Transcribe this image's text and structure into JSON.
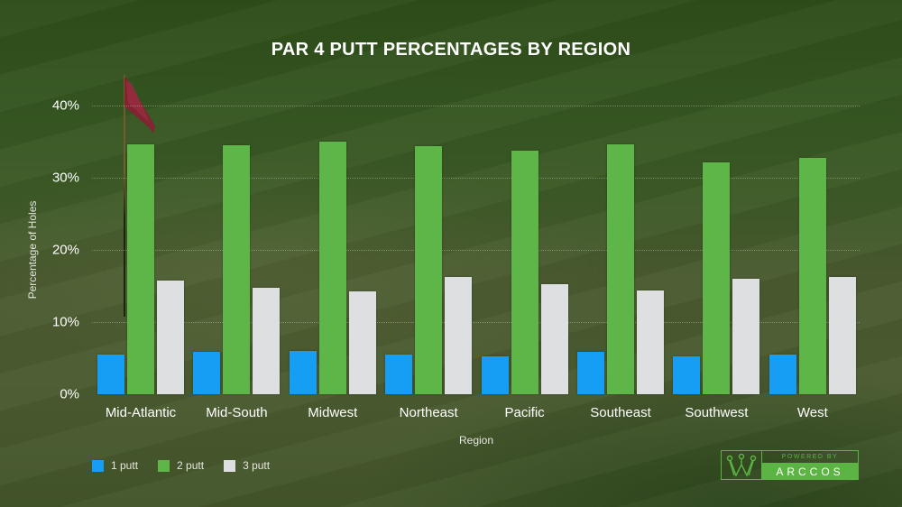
{
  "title": "PAR 4 PUTT PERCENTAGES BY REGION",
  "y_axis": {
    "label": "Percentage of Holes",
    "ticks": [
      "0%",
      "10%",
      "20%",
      "30%",
      "40%"
    ]
  },
  "x_axis": {
    "label": "Region",
    "categories": [
      "Mid-Atlantic",
      "Mid-South",
      "Midwest",
      "Northeast",
      "Pacific",
      "Southeast",
      "Southwest",
      "West"
    ]
  },
  "legend": [
    {
      "label": "1 putt",
      "color": "#169ef5"
    },
    {
      "label": "2 putt",
      "color": "#5eb648"
    },
    {
      "label": "3 putt",
      "color": "#dedfe1"
    }
  ],
  "logo": {
    "powered_by": "POWERED BY",
    "brand": "ARCCOS",
    "icon": "crown-icon",
    "color": "#5cb445"
  },
  "chart_data": {
    "type": "bar",
    "title": "PAR 4 PUTT PERCENTAGES BY REGION",
    "xlabel": "Region",
    "ylabel": "Percentage of Holes",
    "ylim": [
      0,
      40
    ],
    "yticks": [
      0,
      10,
      20,
      30,
      40
    ],
    "ytick_format": "percent",
    "grid": true,
    "legend_position": "bottom-left",
    "categories": [
      "Mid-Atlantic",
      "Mid-South",
      "Midwest",
      "Northeast",
      "Pacific",
      "Southeast",
      "Southwest",
      "West"
    ],
    "series": [
      {
        "name": "1 putt",
        "color": "#169ef5",
        "values": [
          5.5,
          5.9,
          6.0,
          5.5,
          5.3,
          5.9,
          5.3,
          5.5
        ]
      },
      {
        "name": "2 putt",
        "color": "#5eb648",
        "values": [
          34.6,
          34.5,
          35.0,
          34.4,
          33.7,
          34.6,
          32.1,
          32.8
        ]
      },
      {
        "name": "3 putt",
        "color": "#dedfe1",
        "values": [
          15.8,
          14.7,
          14.2,
          16.3,
          15.3,
          14.4,
          16.0,
          16.3
        ]
      }
    ]
  }
}
